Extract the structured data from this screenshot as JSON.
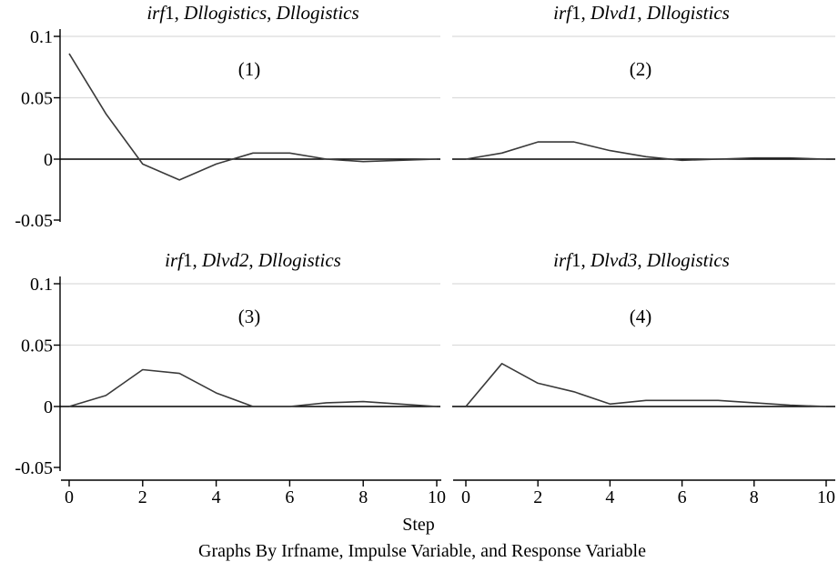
{
  "chart_data": {
    "type": "line",
    "x_title": "Step",
    "footnote": "Graphs By Irfname, Impulse Variable, and Response Variable",
    "x": [
      0,
      1,
      2,
      3,
      4,
      5,
      6,
      7,
      8,
      9,
      10
    ],
    "x_ticks": [
      "0",
      "2",
      "4",
      "6",
      "8",
      "10"
    ],
    "y_ticks": [
      "-0.05",
      "0",
      "0.05",
      "0.1"
    ],
    "ylim": [
      -0.05,
      0.1
    ],
    "xlim": [
      0,
      10
    ],
    "grid": true,
    "colors": {
      "line": "#3a3a3a",
      "grid": "#dcdcdc",
      "zero": "#000000"
    },
    "panels": [
      {
        "title": {
          "irf": "irf",
          "n": "1",
          "impulse": "Dllogistics",
          "response": "Dllogistics"
        },
        "tag": "(1)",
        "values": [
          0.086,
          0.037,
          -0.004,
          -0.017,
          -0.004,
          0.005,
          0.005,
          0.0,
          -0.002,
          -0.001,
          0.0
        ]
      },
      {
        "title": {
          "irf": "irf",
          "n": "1",
          "impulse": "Dlvd1",
          "response": "Dllogistics"
        },
        "tag": "(2)",
        "values": [
          0.0,
          0.005,
          0.014,
          0.014,
          0.007,
          0.002,
          -0.001,
          0.0,
          0.001,
          0.001,
          0.0
        ]
      },
      {
        "title": {
          "irf": "irf",
          "n": "1",
          "impulse": "Dlvd2",
          "response": "Dllogistics"
        },
        "tag": "(3)",
        "values": [
          0.0,
          0.009,
          0.03,
          0.027,
          0.011,
          0.0,
          0.0,
          0.003,
          0.004,
          0.002,
          0.0
        ]
      },
      {
        "title": {
          "irf": "irf",
          "n": "1",
          "impulse": "Dlvd3",
          "response": "Dllogistics"
        },
        "tag": "(4)",
        "values": [
          0.0,
          0.035,
          0.019,
          0.012,
          0.002,
          0.005,
          0.005,
          0.005,
          0.003,
          0.001,
          0.0
        ]
      }
    ]
  }
}
